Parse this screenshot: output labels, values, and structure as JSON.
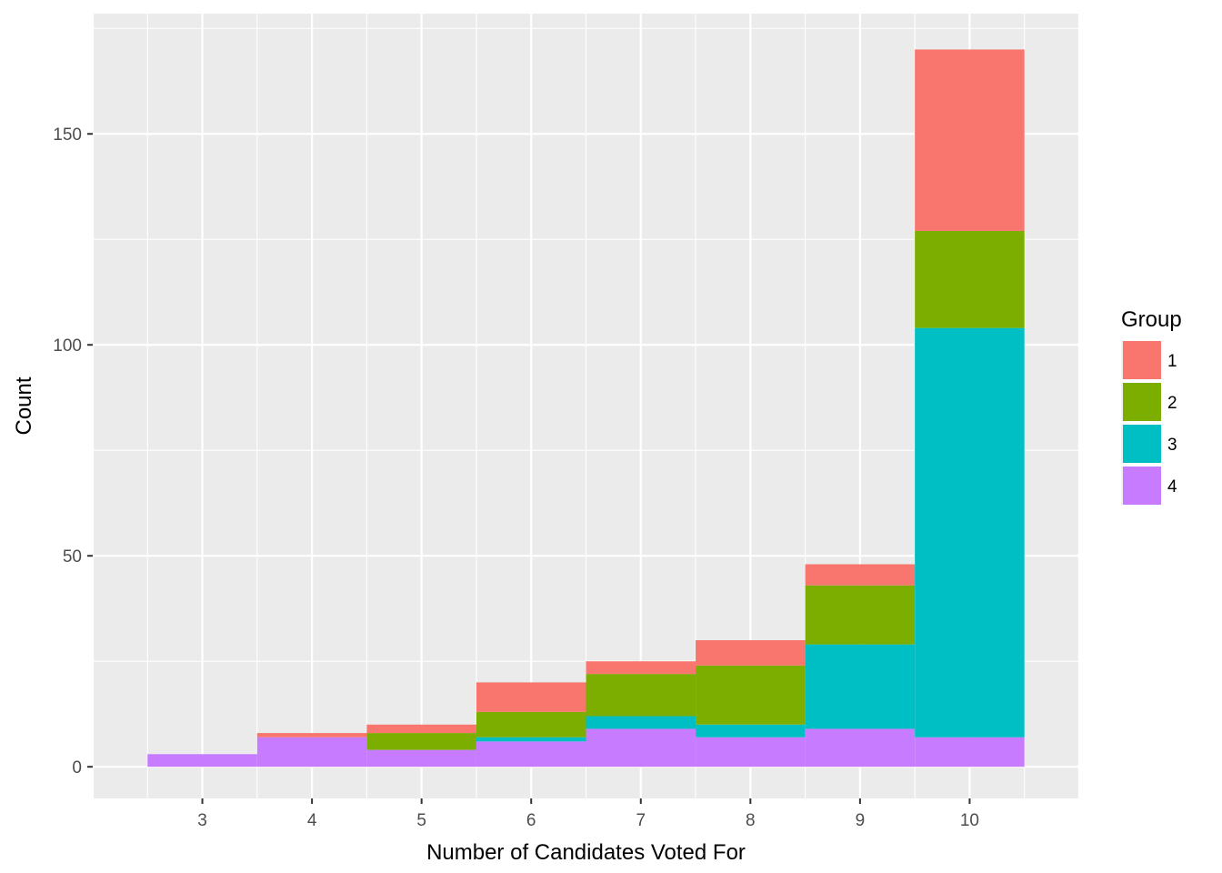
{
  "chart_data": {
    "type": "bar",
    "stacked": true,
    "title": "",
    "xlabel": "Number of Candidates Voted For",
    "ylabel": "Count",
    "categories": [
      "3",
      "4",
      "5",
      "6",
      "7",
      "8",
      "9",
      "10"
    ],
    "x_range": [
      2.5,
      10.5
    ],
    "ylim": [
      -7.5,
      178.5
    ],
    "y_ticks": [
      0,
      50,
      100,
      150
    ],
    "grid": true,
    "legend": {
      "title": "Group",
      "placement": "right",
      "entries": [
        "1",
        "2",
        "3",
        "4"
      ]
    },
    "series": [
      {
        "name": "4",
        "color": "#C77CFF",
        "values": [
          3,
          7,
          4,
          6,
          9,
          7,
          9,
          7
        ]
      },
      {
        "name": "3",
        "color": "#00BFC4",
        "values": [
          0,
          0,
          0,
          1,
          3,
          3,
          20,
          97
        ]
      },
      {
        "name": "2",
        "color": "#7CAE00",
        "values": [
          0,
          0,
          4,
          6,
          10,
          14,
          14,
          23
        ]
      },
      {
        "name": "1",
        "color": "#F8766D",
        "values": [
          0,
          1,
          2,
          7,
          3,
          6,
          5,
          43
        ]
      }
    ]
  }
}
